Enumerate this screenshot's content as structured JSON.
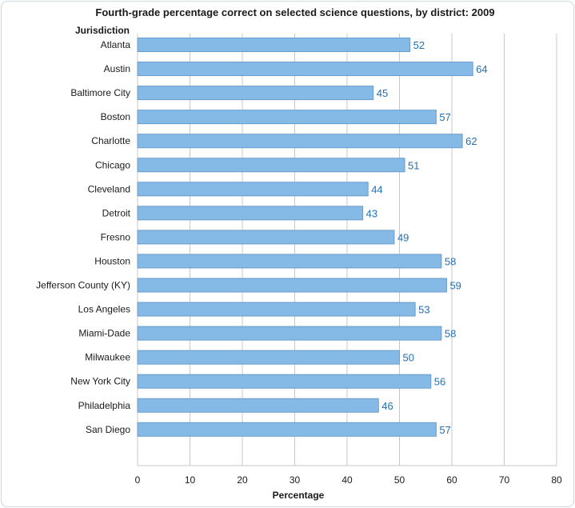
{
  "chart_data": {
    "type": "bar",
    "orientation": "horizontal",
    "title": "Fourth-grade percentage correct on selected science questions, by district: 2009",
    "ylabel": "Jurisdiction",
    "xlabel": "Percentage",
    "categories": [
      "Atlanta",
      "Austin",
      "Baltimore City",
      "Boston",
      "Charlotte",
      "Chicago",
      "Cleveland",
      "Detroit",
      "Fresno",
      "Houston",
      "Jefferson County (KY)",
      "Los Angeles",
      "Miami-Dade",
      "Milwaukee",
      "New York City",
      "Philadelphia",
      "San Diego"
    ],
    "values": [
      52,
      64,
      45,
      57,
      62,
      51,
      44,
      43,
      49,
      58,
      59,
      53,
      58,
      50,
      56,
      46,
      57
    ],
    "xlim": [
      0,
      80
    ],
    "xticks": [
      0,
      10,
      20,
      30,
      40,
      50,
      60,
      70,
      80
    ],
    "grid": "vertical",
    "bar_color": "#85bae6",
    "label_color": "#1f6fb5"
  }
}
